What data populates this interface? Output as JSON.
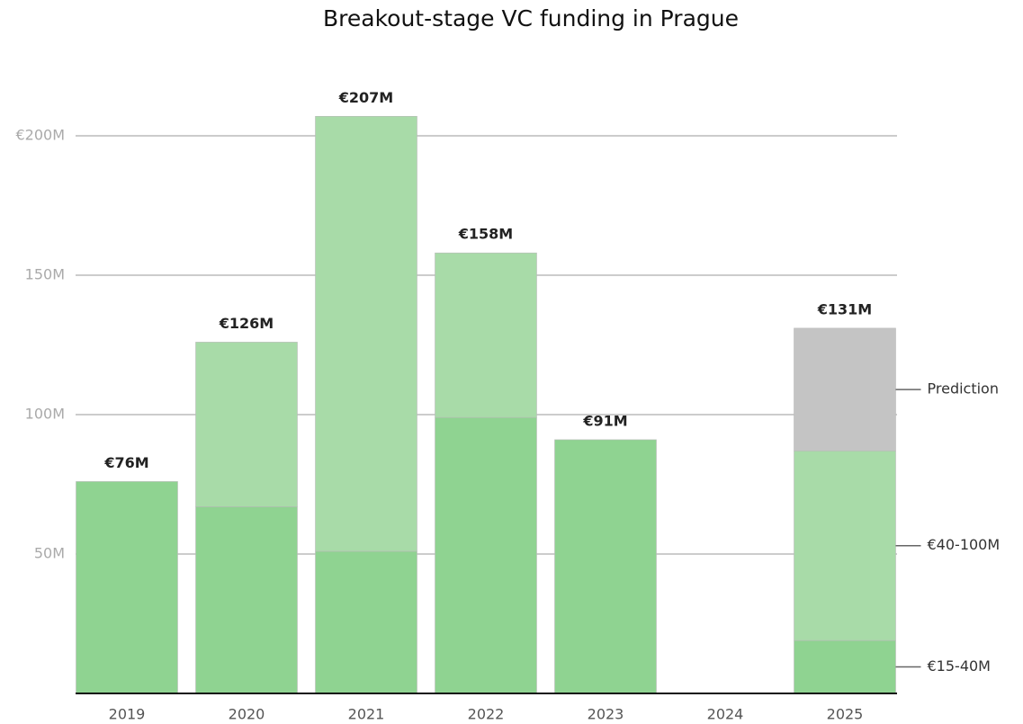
{
  "chart_data": {
    "type": "bar",
    "stacked": true,
    "title": "Breakout-stage VC funding in Prague",
    "categories": [
      "2019",
      "2020",
      "2021",
      "2022",
      "2023",
      "2024",
      "2025"
    ],
    "series": [
      {
        "name": "€15-40M",
        "color": "#8fd391",
        "values": [
          76,
          67,
          51,
          99,
          91,
          null,
          19
        ]
      },
      {
        "name": "€40-100M",
        "color": "#a8dba8",
        "values": [
          0,
          59,
          156,
          59,
          0,
          null,
          68
        ]
      },
      {
        "name": "Prediction",
        "color": "#c4c4c4",
        "values": [
          null,
          null,
          null,
          null,
          null,
          null,
          44
        ]
      }
    ],
    "totals": {
      "values": [
        76,
        126,
        207,
        158,
        91,
        null,
        131
      ],
      "value_labels": [
        "€76M",
        "€126M",
        "€207M",
        "€158M",
        "€91M",
        null,
        "€131M"
      ]
    },
    "ylim": [
      0,
      220
    ],
    "yticks": [
      {
        "value": 50,
        "label": "50M"
      },
      {
        "value": 100,
        "label": "100M"
      },
      {
        "value": 150,
        "label": "150M"
      },
      {
        "value": 200,
        "label": "€200M"
      }
    ],
    "grid": true
  }
}
